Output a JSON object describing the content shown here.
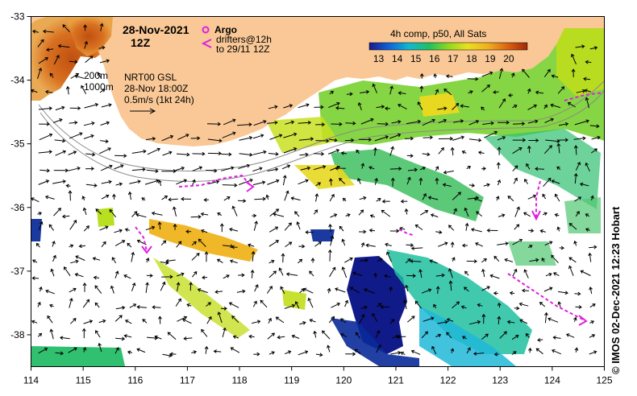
{
  "title": {
    "date": "28-Nov-2021",
    "hour": "12Z"
  },
  "legend": {
    "argo_label": "Argo",
    "drifters_line1": "drifters@12h",
    "drifters_line2": "to 29/11 12Z",
    "argo_color": "#e020e0"
  },
  "colorbar": {
    "title": "4h comp, p50, All Sats",
    "labels": [
      "13",
      "14",
      "15",
      "16",
      "17",
      "18",
      "19",
      "20"
    ],
    "min": 12.5,
    "max": 21
  },
  "info": {
    "isobath_1": "200m",
    "isobath_2": "1000m",
    "product": "NRT00 GSL",
    "time": "28-Nov 18:00Z",
    "scale": "0.5m/s (1kt 24h)"
  },
  "axes": {
    "lon_ticks": [
      "114",
      "115",
      "116",
      "117",
      "118",
      "119",
      "120",
      "121",
      "122",
      "123",
      "124",
      "125"
    ],
    "lat_ticks": [
      "-33",
      "-34",
      "-35",
      "-36",
      "-37",
      "-38"
    ],
    "lon_range": [
      114,
      125
    ],
    "lat_range": [
      -38.5,
      -33
    ]
  },
  "credit": "© IMOS 02-Dec-2021 12:23 Hobart",
  "colors": {
    "land": "#f9c896",
    "frame": "#000000"
  }
}
